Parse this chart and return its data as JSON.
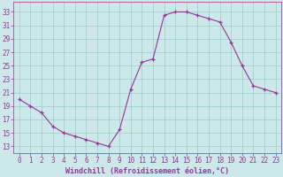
{
  "x": [
    0,
    1,
    2,
    3,
    4,
    5,
    6,
    7,
    8,
    9,
    10,
    11,
    12,
    13,
    14,
    15,
    16,
    17,
    18,
    19,
    20,
    21,
    22,
    23
  ],
  "y": [
    20,
    19,
    18,
    16,
    15,
    14.5,
    14,
    13.5,
    13,
    15.5,
    21.5,
    25.5,
    26,
    32.5,
    33,
    33,
    32.5,
    32,
    31.5,
    28.5,
    25,
    22,
    21.5,
    21
  ],
  "line_color": "#993399",
  "marker": "+",
  "marker_color": "#993399",
  "bg_color": "#cce8e8",
  "grid_color": "#99cccc",
  "xlabel": "Windchill (Refroidissement éolien,°C)",
  "xlabel_color": "#993399",
  "xlabel_fontsize": 6.0,
  "tick_color": "#993399",
  "tick_fontsize": 5.5,
  "ytick_labels": [
    13,
    15,
    17,
    19,
    21,
    23,
    25,
    27,
    29,
    31,
    33
  ],
  "ylim": [
    12.0,
    34.5
  ],
  "xlim": [
    -0.5,
    23.5
  ],
  "xtick_labels": [
    0,
    1,
    2,
    3,
    4,
    5,
    6,
    7,
    8,
    9,
    10,
    11,
    12,
    13,
    14,
    15,
    16,
    17,
    18,
    19,
    20,
    21,
    22,
    23
  ]
}
